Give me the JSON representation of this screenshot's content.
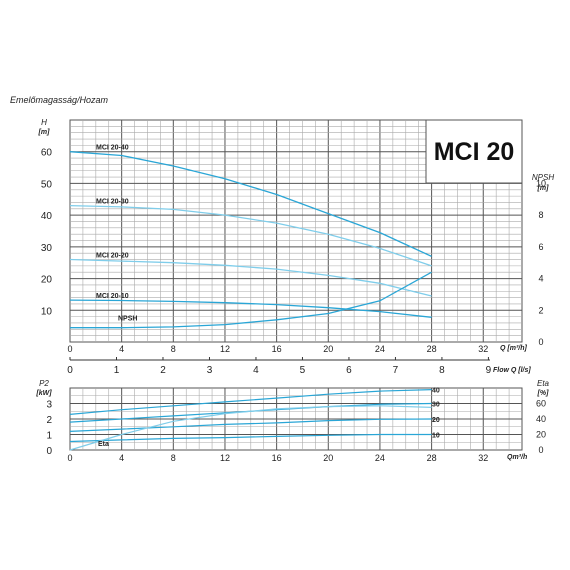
{
  "chart_data": [
    {
      "type": "line",
      "panel": "head",
      "caption": "Emelőmagasság/Hozam",
      "model_title": "MCI 20",
      "ylabel": "H",
      "yunit": "[m]",
      "y2label": "NPSH",
      "y2unit": "[m]",
      "xlabel": "Q [m³/h]",
      "xlabel2": "Flow Q [l/s]",
      "xlim": [
        0,
        35
      ],
      "ylim": [
        0,
        70
      ],
      "y2lim": [
        0,
        14
      ],
      "xticks": [
        "0",
        "4",
        "8",
        "12",
        "16",
        "20",
        "24",
        "28",
        "32"
      ],
      "yticks": [
        "10",
        "20",
        "30",
        "40",
        "50",
        "60"
      ],
      "y2ticks": [
        "0",
        "2",
        "4",
        "6",
        "8",
        "10"
      ],
      "x2ticks": [
        "0",
        "1",
        "2",
        "3",
        "4",
        "5",
        "6",
        "7",
        "8",
        "9"
      ],
      "grid": true,
      "series": [
        {
          "name": "MCI 20-40",
          "color": "#2aa6d6",
          "x": [
            0,
            4,
            8,
            12,
            16,
            20,
            24,
            28
          ],
          "y": [
            60,
            58.8,
            55.5,
            51.5,
            46.5,
            40.5,
            34.5,
            27
          ]
        },
        {
          "name": "MCI 20-30",
          "color": "#7fcdea",
          "x": [
            0,
            4,
            8,
            12,
            16,
            20,
            24,
            28
          ],
          "y": [
            43,
            42.6,
            41.8,
            40,
            37.5,
            34,
            29.5,
            24
          ]
        },
        {
          "name": "MCI 20-20",
          "color": "#7fcdea",
          "x": [
            0,
            4,
            8,
            12,
            16,
            20,
            24,
            28
          ],
          "y": [
            26,
            25.5,
            25,
            24.2,
            23,
            21,
            18.5,
            14.5
          ]
        },
        {
          "name": "MCI 20-10",
          "color": "#2aa6d6",
          "x": [
            0,
            4,
            8,
            12,
            16,
            20,
            24,
            28
          ],
          "y": [
            13.2,
            13.1,
            12.8,
            12.4,
            11.8,
            10.8,
            9.6,
            7.8
          ]
        },
        {
          "name": "NPSH",
          "axis": "NPSH",
          "color": "#2aa6d6",
          "x": [
            0,
            4,
            8,
            12,
            16,
            20,
            24,
            28
          ],
          "y": [
            0.9,
            0.9,
            0.95,
            1.1,
            1.4,
            1.8,
            2.6,
            4.4
          ]
        }
      ]
    },
    {
      "type": "line",
      "panel": "power-efficiency",
      "ylabel": "P2",
      "yunit": "[kW]",
      "y2label": "Eta",
      "y2unit": "[%]",
      "xlabel": "Qm³/h",
      "xlim": [
        0,
        35
      ],
      "ylim": [
        0,
        4
      ],
      "y2lim": [
        0,
        80
      ],
      "xticks": [
        "0",
        "4",
        "8",
        "12",
        "16",
        "20",
        "24",
        "28",
        "32"
      ],
      "yticks": [
        "0",
        "1",
        "2",
        "3"
      ],
      "y2ticks": [
        "0",
        "20",
        "40",
        "60"
      ],
      "series_tags": [
        "40",
        "30",
        "20",
        "10",
        "Eta"
      ],
      "grid": true,
      "series": [
        {
          "name": "40",
          "axis": "P2",
          "color": "#2aa6d6",
          "x": [
            0,
            4,
            8,
            12,
            16,
            20,
            24,
            28
          ],
          "y": [
            2.3,
            2.6,
            2.85,
            3.1,
            3.35,
            3.6,
            3.8,
            3.9
          ]
        },
        {
          "name": "30",
          "axis": "P2",
          "color": "#2aa6d6",
          "x": [
            0,
            4,
            8,
            12,
            16,
            20,
            24,
            28
          ],
          "y": [
            1.8,
            2.0,
            2.2,
            2.4,
            2.6,
            2.8,
            2.95,
            3.0
          ]
        },
        {
          "name": "20",
          "axis": "P2",
          "color": "#2aa6d6",
          "x": [
            0,
            4,
            8,
            12,
            16,
            20,
            24,
            28
          ],
          "y": [
            1.2,
            1.35,
            1.5,
            1.65,
            1.75,
            1.9,
            1.98,
            2.0
          ]
        },
        {
          "name": "10",
          "axis": "P2",
          "color": "#2aa6d6",
          "x": [
            0,
            4,
            8,
            12,
            16,
            20,
            24,
            28
          ],
          "y": [
            0.55,
            0.65,
            0.75,
            0.8,
            0.88,
            0.95,
            1.0,
            1.0
          ]
        },
        {
          "name": "Eta",
          "axis": "Eta",
          "color": "#7fcdea",
          "x": [
            0,
            4,
            8,
            12,
            16,
            20,
            24,
            28
          ],
          "y": [
            0,
            20,
            37,
            47,
            53,
            56,
            57,
            55
          ]
        }
      ]
    }
  ]
}
